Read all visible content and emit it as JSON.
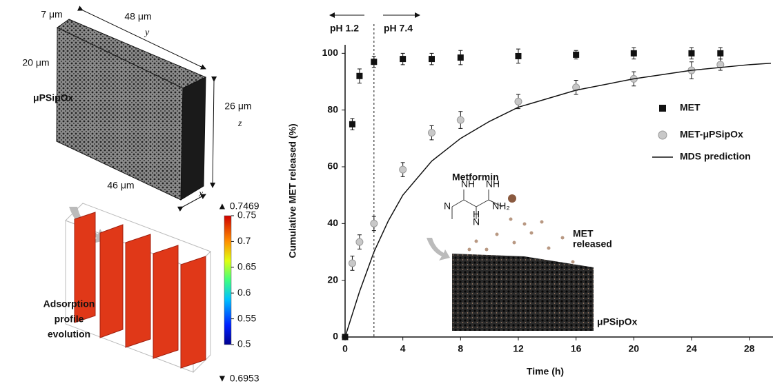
{
  "schematic": {
    "dimensions": [
      "7 μm",
      "48 μm",
      "20 μm",
      "26 μm",
      "46 μm"
    ],
    "axes": [
      "y",
      "z",
      "x"
    ],
    "material": "μPSipOx",
    "caption": [
      "Adsorption",
      "profile",
      "evolution"
    ]
  },
  "colorbar": {
    "max_label": "▲ 0.7469",
    "min_label": "▼ 0.6953",
    "lim": [
      0.5,
      0.75
    ],
    "ticks": [
      0.75,
      0.7,
      0.65,
      0.6,
      0.55,
      0.5
    ]
  },
  "chart_data": {
    "type": "scatter",
    "x_label": "Time (h)",
    "y_label": "Cumulative MET released (%)",
    "xlim": [
      0,
      29.5
    ],
    "ylim": [
      0,
      103
    ],
    "xticks": [
      0,
      4,
      8,
      12,
      16,
      20,
      24,
      28
    ],
    "yticks": [
      0,
      20,
      40,
      60,
      80,
      100
    ],
    "phases": {
      "switch_x": 2,
      "labels": [
        "pH 1.2",
        "pH 7.4"
      ]
    },
    "series": [
      {
        "name": "MET",
        "color": "#111111",
        "marker": "square",
        "x": [
          0,
          0.5,
          1,
          2,
          4,
          6,
          8,
          12,
          16,
          20,
          24,
          26
        ],
        "values": [
          0,
          75,
          92,
          97,
          98,
          98,
          98.5,
          99,
          99.5,
          100,
          100,
          100
        ],
        "errors": [
          0,
          2,
          2.5,
          2,
          2,
          2,
          2.5,
          2.5,
          1.5,
          2,
          2,
          2
        ]
      },
      {
        "name": "MET-μPSipOx",
        "color": "#c8c8c8",
        "marker": "circle",
        "x": [
          0.5,
          1,
          2,
          4,
          6,
          8,
          12,
          16,
          20,
          24,
          26
        ],
        "values": [
          26,
          33.5,
          40,
          59,
          72,
          76.5,
          83,
          88,
          91,
          94,
          96
        ],
        "errors": [
          2.5,
          2.5,
          2.5,
          2.5,
          2.5,
          3,
          2.5,
          2.5,
          2.5,
          3,
          2
        ]
      },
      {
        "name": "MDS prediction",
        "color": "#111111",
        "marker": "line",
        "x": [
          0,
          1,
          2,
          3,
          4,
          6,
          8,
          10,
          12,
          16,
          20,
          24,
          28,
          29.5
        ],
        "values": [
          0,
          16,
          30,
          41,
          50,
          62,
          70,
          76,
          81,
          87,
          91,
          94,
          96,
          96.5
        ]
      }
    ],
    "inset": {
      "title": "Metformin",
      "molecule_labels": [
        "NH",
        "NH",
        "N",
        "H",
        "N",
        "NH₂"
      ],
      "released": [
        "MET",
        "released"
      ],
      "material": "μPSipOx"
    }
  }
}
